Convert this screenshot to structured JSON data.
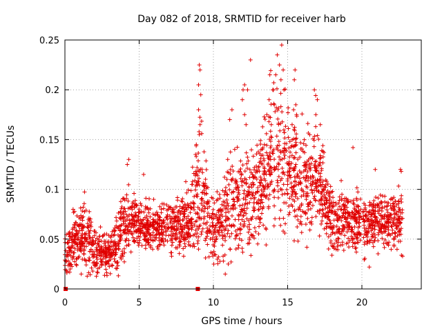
{
  "chart_data": {
    "type": "scatter",
    "title": "Day 082 of 2018, SRMTID for receiver harb",
    "xlabel": "GPS time / hours",
    "ylabel": "SRMTID / TECUs",
    "xlim": [
      0,
      24
    ],
    "ylim": [
      0,
      0.25
    ],
    "xticks": [
      0,
      5,
      10,
      15,
      20
    ],
    "xtick_labels": [
      "0",
      "5",
      "10",
      "15",
      "20"
    ],
    "yticks": [
      0,
      0.05,
      0.1,
      0.15,
      0.2,
      0.25
    ],
    "ytick_labels": [
      "0",
      "0.05",
      "0.1",
      "0.15",
      "0.2",
      "0.25"
    ],
    "grid": true,
    "marker": "+",
    "color": "#e00000",
    "zero_points": [
      [
        0.05,
        0
      ],
      [
        8.95,
        0
      ]
    ],
    "series_trend": [
      {
        "x": 0.0,
        "mean": 0.035,
        "spread": 0.015
      },
      {
        "x": 0.5,
        "mean": 0.045,
        "spread": 0.018
      },
      {
        "x": 1.0,
        "mean": 0.055,
        "spread": 0.022
      },
      {
        "x": 1.5,
        "mean": 0.05,
        "spread": 0.02
      },
      {
        "x": 2.0,
        "mean": 0.04,
        "spread": 0.015
      },
      {
        "x": 2.5,
        "mean": 0.035,
        "spread": 0.012
      },
      {
        "x": 3.0,
        "mean": 0.038,
        "spread": 0.014
      },
      {
        "x": 3.5,
        "mean": 0.045,
        "spread": 0.016
      },
      {
        "x": 4.0,
        "mean": 0.065,
        "spread": 0.022
      },
      {
        "x": 4.5,
        "mean": 0.07,
        "spread": 0.018
      },
      {
        "x": 5.0,
        "mean": 0.065,
        "spread": 0.015
      },
      {
        "x": 6.0,
        "mean": 0.062,
        "spread": 0.015
      },
      {
        "x": 7.0,
        "mean": 0.063,
        "spread": 0.016
      },
      {
        "x": 8.0,
        "mean": 0.065,
        "spread": 0.017
      },
      {
        "x": 8.5,
        "mean": 0.07,
        "spread": 0.022
      },
      {
        "x": 9.0,
        "mean": 0.1,
        "spread": 0.04
      },
      {
        "x": 9.5,
        "mean": 0.08,
        "spread": 0.03
      },
      {
        "x": 10.0,
        "mean": 0.06,
        "spread": 0.022
      },
      {
        "x": 10.5,
        "mean": 0.07,
        "spread": 0.025
      },
      {
        "x": 11.0,
        "mean": 0.08,
        "spread": 0.03
      },
      {
        "x": 11.5,
        "mean": 0.09,
        "spread": 0.035
      },
      {
        "x": 12.0,
        "mean": 0.085,
        "spread": 0.035
      },
      {
        "x": 12.5,
        "mean": 0.09,
        "spread": 0.03
      },
      {
        "x": 13.0,
        "mean": 0.1,
        "spread": 0.03
      },
      {
        "x": 13.5,
        "mean": 0.115,
        "spread": 0.035
      },
      {
        "x": 14.0,
        "mean": 0.13,
        "spread": 0.045
      },
      {
        "x": 14.5,
        "mean": 0.14,
        "spread": 0.05
      },
      {
        "x": 15.0,
        "mean": 0.12,
        "spread": 0.04
      },
      {
        "x": 15.5,
        "mean": 0.12,
        "spread": 0.04
      },
      {
        "x": 16.0,
        "mean": 0.1,
        "spread": 0.035
      },
      {
        "x": 16.5,
        "mean": 0.11,
        "spread": 0.035
      },
      {
        "x": 17.0,
        "mean": 0.115,
        "spread": 0.035
      },
      {
        "x": 17.5,
        "mean": 0.09,
        "spread": 0.025
      },
      {
        "x": 18.0,
        "mean": 0.065,
        "spread": 0.02
      },
      {
        "x": 19.0,
        "mean": 0.07,
        "spread": 0.02
      },
      {
        "x": 20.0,
        "mean": 0.065,
        "spread": 0.02
      },
      {
        "x": 21.0,
        "mean": 0.068,
        "spread": 0.02
      },
      {
        "x": 22.0,
        "mean": 0.068,
        "spread": 0.02
      },
      {
        "x": 22.75,
        "mean": 0.07,
        "spread": 0.02
      }
    ],
    "outliers": [
      [
        4.3,
        0.13
      ],
      [
        4.2,
        0.125
      ],
      [
        5.3,
        0.115
      ],
      [
        8.85,
        0.145
      ],
      [
        8.8,
        0.135
      ],
      [
        9.05,
        0.225
      ],
      [
        9.1,
        0.22
      ],
      [
        9.0,
        0.205
      ],
      [
        9.15,
        0.195
      ],
      [
        9.0,
        0.18
      ],
      [
        9.1,
        0.165
      ],
      [
        9.05,
        0.155
      ],
      [
        12.0,
        0.2
      ],
      [
        12.1,
        0.205
      ],
      [
        12.3,
        0.2
      ],
      [
        11.95,
        0.19
      ],
      [
        12.1,
        0.175
      ],
      [
        12.2,
        0.165
      ],
      [
        11.1,
        0.17
      ],
      [
        11.25,
        0.18
      ],
      [
        12.5,
        0.23
      ],
      [
        14.3,
        0.235
      ],
      [
        14.45,
        0.225
      ],
      [
        14.6,
        0.245
      ],
      [
        14.7,
        0.22
      ],
      [
        14.55,
        0.21
      ],
      [
        14.75,
        0.2
      ],
      [
        14.2,
        0.215
      ],
      [
        13.8,
        0.215
      ],
      [
        14.0,
        0.2
      ],
      [
        13.75,
        0.19
      ],
      [
        14.1,
        0.185
      ],
      [
        13.6,
        0.175
      ],
      [
        13.9,
        0.165
      ],
      [
        15.5,
        0.22
      ],
      [
        15.45,
        0.21
      ],
      [
        15.55,
        0.185
      ],
      [
        15.6,
        0.175
      ],
      [
        15.4,
        0.18
      ],
      [
        15.3,
        0.165
      ],
      [
        16.8,
        0.2
      ],
      [
        17.0,
        0.19
      ],
      [
        16.9,
        0.175
      ],
      [
        17.2,
        0.165
      ],
      [
        19.4,
        0.142
      ],
      [
        20.9,
        0.12
      ],
      [
        22.6,
        0.12
      ],
      [
        22.65,
        0.118
      ],
      [
        10.8,
        0.015
      ],
      [
        11.0,
        0.025
      ],
      [
        1.1,
        0.015
      ],
      [
        0.35,
        0.02
      ],
      [
        20.5,
        0.022
      ],
      [
        9.0,
        0.04
      ],
      [
        15.7,
        0.048
      ]
    ]
  }
}
